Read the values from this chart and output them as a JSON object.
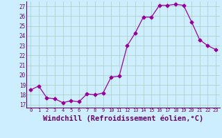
{
  "x": [
    0,
    1,
    2,
    3,
    4,
    5,
    6,
    7,
    8,
    9,
    10,
    11,
    12,
    13,
    14,
    15,
    16,
    17,
    18,
    19,
    20,
    21,
    22,
    23
  ],
  "y": [
    18.5,
    18.9,
    17.7,
    17.6,
    17.2,
    17.4,
    17.3,
    18.1,
    18.0,
    18.2,
    19.8,
    19.9,
    23.0,
    24.3,
    25.9,
    25.9,
    27.1,
    27.1,
    27.2,
    27.1,
    25.4,
    23.6,
    23.0,
    22.6
  ],
  "line_color": "#990099",
  "marker": "D",
  "marker_size": 2.5,
  "bg_color": "#cceeff",
  "grid_color": "#aaccbb",
  "xlabel": "Windchill (Refroidissement éolien,°C)",
  "xlabel_fontsize": 7.5,
  "ylabel_ticks": [
    17,
    18,
    19,
    20,
    21,
    22,
    23,
    24,
    25,
    26,
    27
  ],
  "ylim": [
    16.7,
    27.5
  ],
  "xlim": [
    -0.5,
    23.5
  ],
  "xtick_labels": [
    "0",
    "1",
    "2",
    "3",
    "4",
    "5",
    "6",
    "7",
    "8",
    "9",
    "10",
    "11",
    "12",
    "13",
    "14",
    "15",
    "16",
    "17",
    "18",
    "19",
    "20",
    "21",
    "22",
    "23"
  ],
  "tick_color": "#660066",
  "spine_color": "#660066"
}
